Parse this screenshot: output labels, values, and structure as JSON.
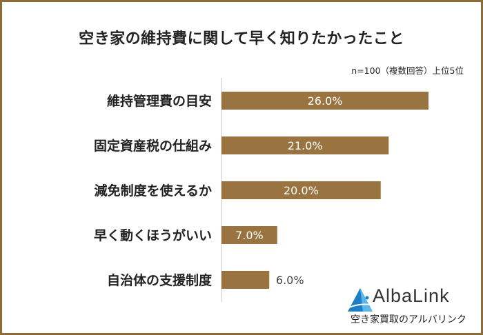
{
  "chart_data": {
    "type": "bar",
    "orientation": "horizontal",
    "title": "空き家の維持費に関して早く知りたかったこと",
    "note": "n=100（複数回答）上位5位",
    "categories": [
      "維持管理費の目安",
      "固定資産税の仕組み",
      "減免制度を使えるか",
      "早く動くほうがいい",
      "自治体の支援制度"
    ],
    "values": [
      26.0,
      21.0,
      20.0,
      7.0,
      6.0
    ],
    "data_labels": [
      "26.0%",
      "21.0%",
      "20.0%",
      "7.0%",
      "6.0%"
    ],
    "xlim": [
      0,
      26
    ],
    "grid": false,
    "bar_color": "#9a7440",
    "frame_color": "#8e6c3a"
  },
  "logo": {
    "name": "AlbaLink",
    "tagline": "空き家買取のアルバリンク",
    "color": "#1e7fc8"
  }
}
